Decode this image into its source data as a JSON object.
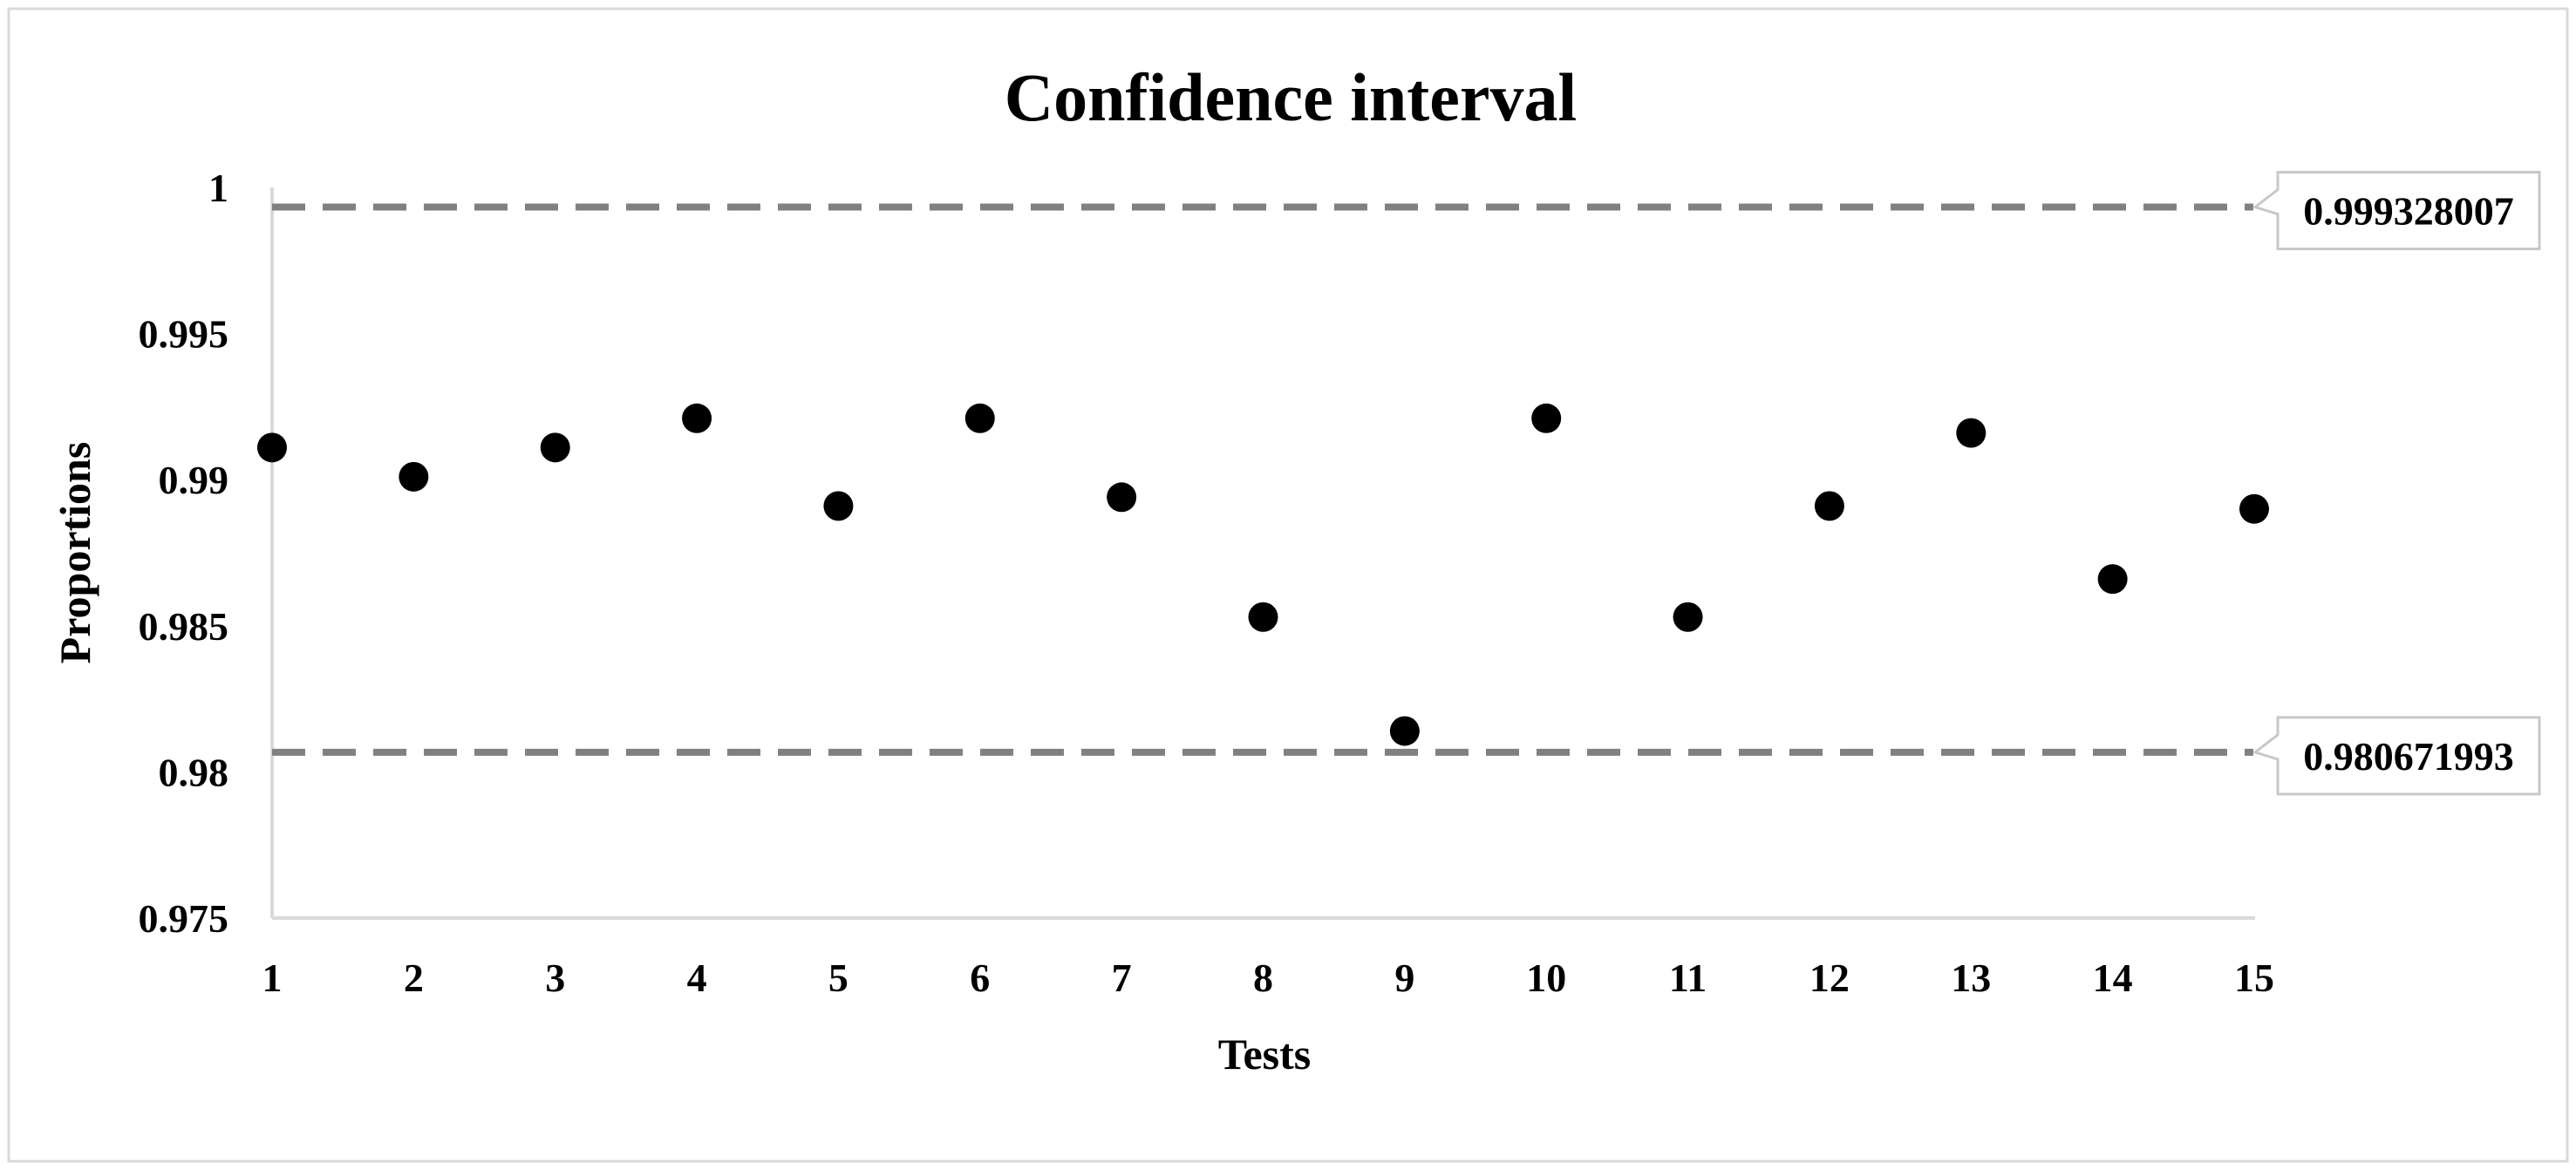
{
  "chart_data": {
    "type": "scatter",
    "title": "Confidence interval",
    "xlabel": "Tests",
    "ylabel": "Proportions",
    "x": [
      1,
      2,
      3,
      4,
      5,
      6,
      7,
      8,
      9,
      10,
      11,
      12,
      13,
      14,
      15
    ],
    "x_tick_labels": [
      "1",
      "2",
      "3",
      "4",
      "5",
      "6",
      "7",
      "8",
      "9",
      "10",
      "11",
      "12",
      "13",
      "14",
      "15"
    ],
    "y": [
      0.9911,
      0.9901,
      0.9911,
      0.9921,
      0.9891,
      0.9921,
      0.9894,
      0.9853,
      0.9814,
      0.9921,
      0.9853,
      0.9891,
      0.9916,
      0.9866,
      0.989
    ],
    "ylim": [
      0.975,
      1.0
    ],
    "y_ticks": [
      0.975,
      0.98,
      0.985,
      0.99,
      0.995,
      1
    ],
    "y_tick_labels": [
      "0.975",
      "0.98",
      "0.985",
      "0.99",
      "0.995",
      "1"
    ],
    "grid": false,
    "marker_color": "#000000",
    "reference_lines": [
      {
        "value": 0.999328007,
        "label": "0.999328007",
        "style": "dashed",
        "color": "#808080"
      },
      {
        "value": 0.980671993,
        "label": "0.980671993",
        "style": "dashed",
        "color": "#808080"
      }
    ]
  }
}
